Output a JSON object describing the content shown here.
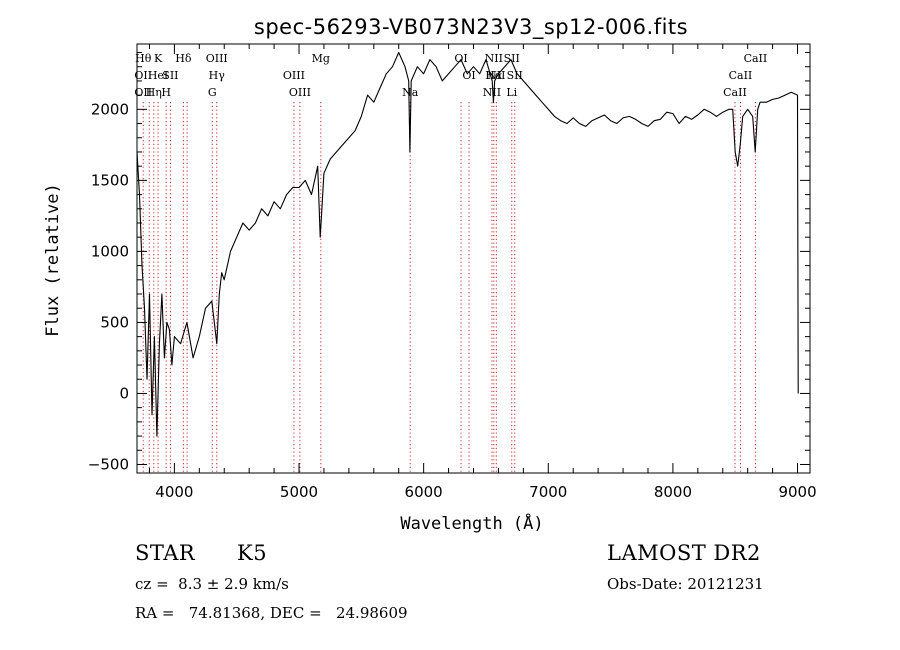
{
  "chart_data": {
    "type": "line",
    "title": "spec-56293-VB073N23V3_sp12-006.fits",
    "xlabel": "Wavelength (Å)",
    "ylabel": "Flux (relative)",
    "xlim": [
      3700,
      9100
    ],
    "ylim": [
      -560,
      2460
    ],
    "xticks": [
      4000,
      5000,
      6000,
      7000,
      8000,
      9000
    ],
    "yticks": [
      -500,
      0,
      500,
      1000,
      1500,
      2000
    ],
    "grid": false,
    "series": [
      {
        "color": "#000000",
        "x": [
          3700,
          3720,
          3740,
          3760,
          3780,
          3800,
          3820,
          3840,
          3860,
          3880,
          3900,
          3920,
          3940,
          3960,
          3980,
          4000,
          4050,
          4100,
          4150,
          4200,
          4250,
          4300,
          4340,
          4360,
          4380,
          4400,
          4450,
          4500,
          4550,
          4600,
          4650,
          4700,
          4750,
          4800,
          4850,
          4900,
          4950,
          5000,
          5050,
          5100,
          5150,
          5170,
          5180,
          5200,
          5250,
          5300,
          5350,
          5400,
          5450,
          5500,
          5550,
          5600,
          5650,
          5700,
          5750,
          5800,
          5850,
          5880,
          5890,
          5900,
          5950,
          6000,
          6050,
          6100,
          6150,
          6200,
          6250,
          6300,
          6350,
          6400,
          6450,
          6500,
          6550,
          6560,
          6570,
          6600,
          6650,
          6700,
          6750,
          6800,
          6850,
          6900,
          6950,
          7000,
          7050,
          7100,
          7150,
          7200,
          7250,
          7300,
          7350,
          7400,
          7450,
          7500,
          7550,
          7600,
          7650,
          7700,
          7750,
          7800,
          7850,
          7900,
          7950,
          8000,
          8050,
          8100,
          8150,
          8200,
          8250,
          8300,
          8350,
          8400,
          8450,
          8480,
          8500,
          8520,
          8540,
          8560,
          8600,
          8640,
          8660,
          8680,
          8700,
          8750,
          8800,
          8850,
          8900,
          8950,
          9000,
          9005
        ],
        "y": [
          1700,
          1400,
          900,
          600,
          100,
          700,
          -150,
          400,
          -300,
          350,
          700,
          250,
          500,
          450,
          200,
          400,
          350,
          500,
          250,
          400,
          600,
          650,
          350,
          700,
          850,
          800,
          1000,
          1100,
          1200,
          1150,
          1200,
          1300,
          1250,
          1350,
          1300,
          1400,
          1450,
          1450,
          1500,
          1400,
          1600,
          1100,
          1250,
          1550,
          1650,
          1700,
          1750,
          1800,
          1850,
          1950,
          2100,
          2050,
          2150,
          2250,
          2300,
          2400,
          2300,
          2200,
          1700,
          2200,
          2300,
          2250,
          2350,
          2300,
          2200,
          2250,
          2300,
          2350,
          2250,
          2300,
          2250,
          2350,
          2200,
          2050,
          2200,
          2250,
          2300,
          2350,
          2250,
          2200,
          2150,
          2100,
          2050,
          2000,
          1950,
          1920,
          1900,
          1940,
          1900,
          1880,
          1920,
          1940,
          1960,
          1920,
          1900,
          1940,
          1950,
          1930,
          1900,
          1880,
          1920,
          1930,
          1980,
          1970,
          1900,
          1950,
          1930,
          1960,
          2000,
          1980,
          1950,
          1980,
          2000,
          2000,
          1700,
          1600,
          1750,
          1950,
          2000,
          1950,
          1700,
          2000,
          2050,
          2050,
          2070,
          2080,
          2100,
          2120,
          2100,
          0
        ]
      }
    ],
    "lines": [
      {
        "x": 3750,
        "labels": [
          "Hθ",
          "OII",
          "OII"
        ]
      },
      {
        "x": 3798,
        "labels": [
          "",
          "",
          ""
        ]
      },
      {
        "x": 3835,
        "labels": [
          "",
          "",
          "Hη"
        ]
      },
      {
        "x": 3869,
        "labels": [
          "K",
          "HeI",
          ""
        ]
      },
      {
        "x": 3934,
        "labels": [
          "",
          "",
          "H"
        ]
      },
      {
        "x": 3968,
        "labels": [
          "",
          "SII",
          ""
        ]
      },
      {
        "x": 4072,
        "labels": [
          "Hδ",
          "",
          ""
        ]
      },
      {
        "x": 4102,
        "labels": [
          "",
          "",
          ""
        ]
      },
      {
        "x": 4304,
        "labels": [
          "",
          "",
          "G"
        ]
      },
      {
        "x": 4340,
        "labels": [
          "OIII",
          "Hγ",
          ""
        ]
      },
      {
        "x": 4959,
        "labels": [
          "",
          "OIII",
          ""
        ]
      },
      {
        "x": 5007,
        "labels": [
          "",
          "",
          "OIII"
        ]
      },
      {
        "x": 5175,
        "labels": [
          "Mg",
          "",
          ""
        ]
      },
      {
        "x": 5892,
        "labels": [
          "",
          "",
          "Na"
        ]
      },
      {
        "x": 6300,
        "labels": [
          "OI",
          "",
          ""
        ]
      },
      {
        "x": 6364,
        "labels": [
          "",
          "OI",
          ""
        ]
      },
      {
        "x": 6548,
        "labels": [
          "",
          "",
          "NII"
        ]
      },
      {
        "x": 6563,
        "labels": [
          "NII",
          "Hα",
          ""
        ]
      },
      {
        "x": 6583,
        "labels": [
          "",
          "NII",
          ""
        ]
      },
      {
        "x": 6707,
        "labels": [
          "SII",
          "",
          "Li"
        ]
      },
      {
        "x": 6731,
        "labels": [
          "",
          "SII",
          ""
        ]
      },
      {
        "x": 8498,
        "labels": [
          "",
          "",
          "CaII"
        ]
      },
      {
        "x": 8542,
        "labels": [
          "",
          "CaII",
          ""
        ]
      },
      {
        "x": 8662,
        "labels": [
          "CaII",
          "",
          ""
        ]
      }
    ]
  },
  "info": {
    "object_class": "STAR",
    "subclass": "K5",
    "redshift_line": "cz =  8.3 ± 2.9 km/s",
    "coords_line": "RA =   74.81368, DEC =   24.98609",
    "survey": "LAMOST DR2",
    "obs_date_line": "Obs-Date: 20121231"
  }
}
